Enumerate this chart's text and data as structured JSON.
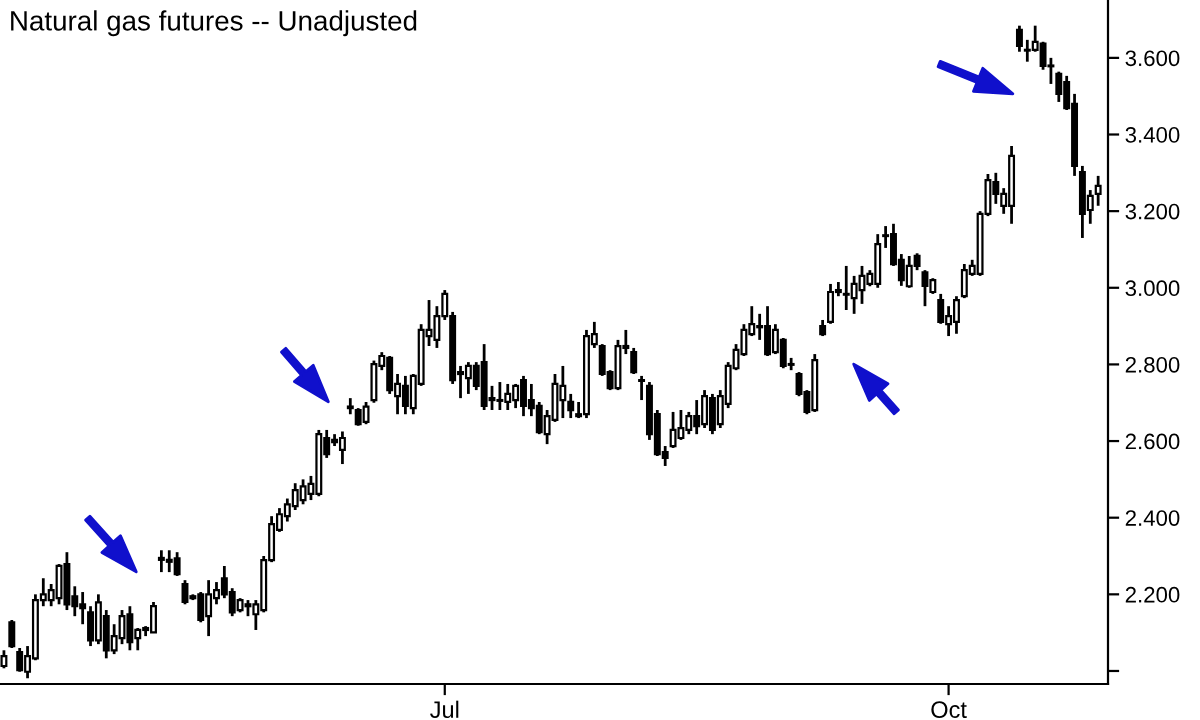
{
  "chart_data": {
    "type": "candlestick",
    "title": "Natural gas futures -- Unadjusted",
    "categories": [
      null,
      null,
      null,
      null,
      null,
      null,
      null,
      null,
      null,
      null,
      null,
      null,
      null,
      null,
      null,
      null,
      null,
      null,
      null,
      null,
      null,
      null,
      null,
      null,
      null,
      null,
      null,
      null,
      null,
      null,
      null,
      null,
      null,
      null,
      null,
      null,
      null,
      null,
      null,
      null,
      null,
      null,
      null,
      null,
      null,
      null,
      null,
      null,
      null,
      null,
      null,
      null,
      null,
      null,
      null,
      null,
      "Jul",
      null,
      null,
      null,
      null,
      null,
      null,
      null,
      null,
      null,
      null,
      null,
      null,
      null,
      null,
      null,
      null,
      null,
      null,
      null,
      null,
      null,
      null,
      null,
      null,
      null,
      null,
      null,
      null,
      null,
      null,
      null,
      null,
      null,
      null,
      null,
      null,
      null,
      null,
      null,
      null,
      null,
      null,
      null,
      null,
      null,
      null,
      null,
      null,
      null,
      null,
      null,
      null,
      null,
      null,
      null,
      null,
      null,
      null,
      null,
      null,
      null,
      null,
      null,
      "Oct",
      null,
      null,
      null,
      null,
      null,
      null,
      null,
      null,
      null,
      null,
      null,
      null,
      null,
      null,
      null,
      null,
      null,
      null,
      null
    ],
    "ohlc": [
      [
        2.013,
        2.054,
        2.007,
        2.039
      ],
      [
        2.127,
        2.133,
        2.06,
        2.065
      ],
      [
        2.049,
        2.06,
        1.998,
        2.002
      ],
      [
        1.998,
        2.065,
        1.981,
        2.039
      ],
      [
        2.033,
        2.2,
        2.028,
        2.185
      ],
      [
        2.185,
        2.242,
        2.169,
        2.2
      ],
      [
        2.185,
        2.227,
        2.169,
        2.211
      ],
      [
        2.19,
        2.279,
        2.174,
        2.274
      ],
      [
        2.279,
        2.31,
        2.159,
        2.174
      ],
      [
        2.195,
        2.221,
        2.143,
        2.169
      ],
      [
        2.174,
        2.206,
        2.122,
        2.164
      ],
      [
        2.153,
        2.169,
        2.065,
        2.08
      ],
      [
        2.08,
        2.2,
        2.07,
        2.179
      ],
      [
        2.143,
        2.159,
        2.033,
        2.054
      ],
      [
        2.054,
        2.122,
        2.044,
        2.091
      ],
      [
        2.086,
        2.159,
        2.07,
        2.143
      ],
      [
        2.148,
        2.169,
        2.054,
        2.075
      ],
      [
        2.086,
        2.112,
        2.054,
        2.107
      ],
      [
        2.107,
        2.117,
        2.091,
        2.112
      ],
      [
        2.101,
        2.18,
        2.1,
        2.169
      ],
      [
        2.29,
        2.315,
        2.258,
        2.295
      ],
      [
        2.29,
        2.315,
        2.258,
        2.285
      ],
      [
        2.294,
        2.31,
        2.248,
        2.253
      ],
      [
        2.227,
        2.237,
        2.174,
        2.18
      ],
      [
        2.195,
        2.2,
        2.185,
        2.19
      ],
      [
        2.2,
        2.206,
        2.127,
        2.133
      ],
      [
        2.143,
        2.237,
        2.091,
        2.2
      ],
      [
        2.19,
        2.232,
        2.174,
        2.211
      ],
      [
        2.242,
        2.274,
        2.19,
        2.2
      ],
      [
        2.206,
        2.216,
        2.143,
        2.153
      ],
      [
        2.159,
        2.19,
        2.153,
        2.185
      ],
      [
        2.169,
        2.185,
        2.143,
        2.174
      ],
      [
        2.148,
        2.185,
        2.107,
        2.174
      ],
      [
        2.159,
        2.3,
        2.153,
        2.289
      ],
      [
        2.289,
        2.404,
        2.284,
        2.383
      ],
      [
        2.368,
        2.425,
        2.363,
        2.409
      ],
      [
        2.404,
        2.45,
        2.39,
        2.435
      ],
      [
        2.43,
        2.49,
        2.42,
        2.472
      ],
      [
        2.446,
        2.5,
        2.435,
        2.482
      ],
      [
        2.462,
        2.509,
        2.446,
        2.488
      ],
      [
        2.462,
        2.629,
        2.456,
        2.618
      ],
      [
        2.608,
        2.629,
        2.556,
        2.566
      ],
      [
        2.603,
        2.618,
        2.587,
        2.597
      ],
      [
        2.577,
        2.625,
        2.54,
        2.608
      ],
      [
        2.69,
        2.712,
        2.67,
        2.686
      ],
      [
        2.681,
        2.686,
        2.64,
        2.644
      ],
      [
        2.65,
        2.702,
        2.644,
        2.69
      ],
      [
        2.707,
        2.81,
        2.7,
        2.801
      ],
      [
        2.796,
        2.832,
        2.785,
        2.822
      ],
      [
        2.817,
        2.822,
        2.723,
        2.733
      ],
      [
        2.717,
        2.775,
        2.67,
        2.749
      ],
      [
        2.744,
        2.77,
        2.67,
        2.692
      ],
      [
        2.686,
        2.775,
        2.67,
        2.77
      ],
      [
        2.749,
        2.905,
        2.744,
        2.89
      ],
      [
        2.874,
        2.968,
        2.848,
        2.89
      ],
      [
        2.864,
        2.952,
        2.843,
        2.926
      ],
      [
        2.926,
        2.994,
        2.916,
        2.984
      ],
      [
        2.926,
        2.937,
        2.749,
        2.759
      ],
      [
        2.78,
        2.796,
        2.712,
        2.775
      ],
      [
        2.764,
        2.806,
        2.723,
        2.796
      ],
      [
        2.796,
        2.806,
        2.733,
        2.744
      ],
      [
        2.806,
        2.853,
        2.681,
        2.692
      ],
      [
        2.707,
        2.744,
        2.681,
        2.712
      ],
      [
        2.707,
        2.754,
        2.681,
        2.705
      ],
      [
        2.702,
        2.749,
        2.681,
        2.723
      ],
      [
        2.707,
        2.749,
        2.686,
        2.744
      ],
      [
        2.759,
        2.77,
        2.665,
        2.692
      ],
      [
        2.707,
        2.749,
        2.665,
        2.686
      ],
      [
        2.692,
        2.702,
        2.618,
        2.623
      ],
      [
        2.618,
        2.681,
        2.592,
        2.665
      ],
      [
        2.655,
        2.775,
        2.65,
        2.749
      ],
      [
        2.707,
        2.796,
        2.66,
        2.744
      ],
      [
        2.702,
        2.723,
        2.66,
        2.681
      ],
      [
        2.67,
        2.702,
        2.66,
        2.665
      ],
      [
        2.67,
        2.89,
        2.66,
        2.874
      ],
      [
        2.853,
        2.911,
        2.843,
        2.879
      ],
      [
        2.848,
        2.853,
        2.77,
        2.775
      ],
      [
        2.78,
        2.785,
        2.733,
        2.738
      ],
      [
        2.738,
        2.864,
        2.733,
        2.848
      ],
      [
        2.843,
        2.89,
        2.827,
        2.848
      ],
      [
        2.832,
        2.843,
        2.775,
        2.78
      ],
      [
        2.759,
        2.77,
        2.707,
        2.757
      ],
      [
        2.744,
        2.754,
        2.603,
        2.618
      ],
      [
        2.67,
        2.681,
        2.561,
        2.566
      ],
      [
        2.571,
        2.587,
        2.535,
        2.556
      ],
      [
        2.587,
        2.676,
        2.582,
        2.629
      ],
      [
        2.608,
        2.681,
        2.603,
        2.634
      ],
      [
        2.629,
        2.676,
        2.618,
        2.665
      ],
      [
        2.665,
        2.707,
        2.618,
        2.639
      ],
      [
        2.644,
        2.733,
        2.634,
        2.717
      ],
      [
        2.712,
        2.723,
        2.618,
        2.629
      ],
      [
        2.644,
        2.733,
        2.634,
        2.717
      ],
      [
        2.697,
        2.806,
        2.686,
        2.796
      ],
      [
        2.79,
        2.853,
        2.785,
        2.838
      ],
      [
        2.827,
        2.905,
        2.822,
        2.89
      ],
      [
        2.879,
        2.952,
        2.874,
        2.905
      ],
      [
        2.9,
        2.932,
        2.864,
        2.897
      ],
      [
        2.9,
        2.952,
        2.822,
        2.827
      ],
      [
        2.832,
        2.905,
        2.827,
        2.89
      ],
      [
        2.864,
        2.869,
        2.79,
        2.796
      ],
      [
        2.801,
        2.817,
        2.785,
        2.799
      ],
      [
        2.775,
        2.78,
        2.717,
        2.723
      ],
      [
        2.728,
        2.733,
        2.67,
        2.676
      ],
      [
        2.681,
        2.827,
        2.676,
        2.811
      ],
      [
        2.9,
        2.916,
        2.874,
        2.879
      ],
      [
        2.911,
        3.01,
        2.906,
        2.989
      ],
      [
        2.994,
        3.015,
        2.978,
        2.989
      ],
      [
        2.984,
        3.057,
        2.942,
        2.982
      ],
      [
        2.973,
        3.031,
        2.932,
        3.01
      ],
      [
        2.994,
        3.057,
        2.958,
        3.031
      ],
      [
        3.01,
        3.046,
        3.004,
        3.036
      ],
      [
        3.01,
        3.14,
        3.0,
        3.114
      ],
      [
        3.137,
        3.161,
        3.104,
        3.135
      ],
      [
        3.14,
        3.167,
        3.057,
        3.062
      ],
      [
        3.073,
        3.088,
        3.005,
        3.02
      ],
      [
        3.004,
        3.083,
        3.0,
        3.057
      ],
      [
        3.083,
        3.09,
        3.046,
        3.057
      ],
      [
        3.04,
        3.046,
        2.952,
        3.005
      ],
      [
        2.989,
        3.025,
        2.984,
        3.02
      ],
      [
        2.968,
        2.984,
        2.906,
        2.911
      ],
      [
        2.905,
        2.952,
        2.874,
        2.926
      ],
      [
        2.911,
        2.978,
        2.88,
        2.968
      ],
      [
        2.978,
        3.062,
        2.973,
        3.046
      ],
      [
        3.036,
        3.073,
        3.031,
        3.057
      ],
      [
        3.036,
        3.2,
        3.031,
        3.193
      ],
      [
        3.193,
        3.297,
        3.187,
        3.281
      ],
      [
        3.276,
        3.3,
        3.219,
        3.245
      ],
      [
        3.214,
        3.26,
        3.193,
        3.245
      ],
      [
        3.214,
        3.37,
        3.167,
        3.344
      ],
      [
        3.673,
        3.684,
        3.616,
        3.631
      ],
      [
        3.621,
        3.647,
        3.59,
        3.619
      ],
      [
        3.621,
        3.684,
        3.616,
        3.642
      ],
      [
        3.637,
        3.642,
        3.569,
        3.579
      ],
      [
        3.58,
        3.6,
        3.532,
        3.578
      ],
      [
        3.558,
        3.564,
        3.485,
        3.506
      ],
      [
        3.537,
        3.553,
        3.464,
        3.469
      ],
      [
        3.48,
        3.506,
        3.292,
        3.318
      ],
      [
        3.302,
        3.318,
        3.13,
        3.193
      ],
      [
        3.203,
        3.255,
        3.167,
        3.24
      ],
      [
        3.245,
        3.292,
        3.214,
        3.266
      ]
    ],
    "ylim": [
      1.966,
      3.751
    ],
    "yticks": [
      {
        "value": 2.0,
        "label": null
      },
      {
        "value": 2.2,
        "label": "2.200"
      },
      {
        "value": 2.4,
        "label": "2.400"
      },
      {
        "value": 2.6,
        "label": "2.600"
      },
      {
        "value": 2.8,
        "label": "2.800"
      },
      {
        "value": 3.0,
        "label": "3.000"
      },
      {
        "value": 3.2,
        "label": "3.200"
      },
      {
        "value": 3.4,
        "label": "3.400"
      },
      {
        "value": 3.6,
        "label": "3.600"
      }
    ],
    "grid": false,
    "legend": false
  }
}
